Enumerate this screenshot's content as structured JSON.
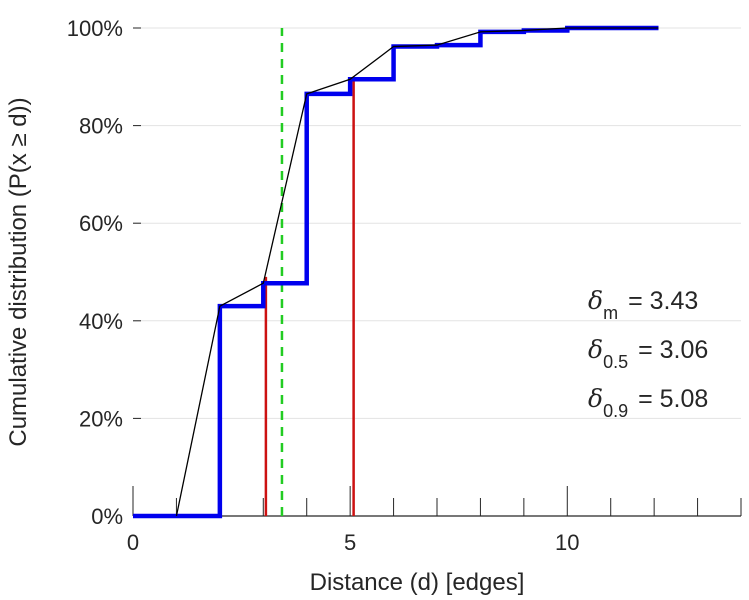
{
  "chart_data": {
    "type": "line",
    "xlabel": "Distance (d) [edges]",
    "ylabel": "Cumulative distribution (P(x ≥ d))",
    "xlim": [
      0,
      14
    ],
    "ylim": [
      0,
      1
    ],
    "x_ticks": [
      0,
      5,
      10
    ],
    "x_tick_labels": [
      "0",
      "5",
      "10"
    ],
    "x_minor_ticks": [
      1,
      2,
      3,
      4,
      6,
      7,
      8,
      9,
      11,
      12,
      13,
      14
    ],
    "y_ticks": [
      0,
      0.2,
      0.4,
      0.6,
      0.8,
      1.0
    ],
    "y_tick_labels": [
      "0%",
      "20%",
      "40%",
      "60%",
      "80%",
      "100%"
    ],
    "grid": "horizontal",
    "series": [
      {
        "kind": "step",
        "color": "#0000ee",
        "points": [
          [
            0,
            0
          ],
          [
            2,
            0
          ],
          [
            2,
            0.43
          ],
          [
            3,
            0.43
          ],
          [
            3,
            0.477
          ],
          [
            4,
            0.477
          ],
          [
            4,
            0.865
          ],
          [
            5,
            0.865
          ],
          [
            5,
            0.895
          ],
          [
            6,
            0.895
          ],
          [
            6,
            0.962
          ],
          [
            7,
            0.962
          ],
          [
            7,
            0.965
          ],
          [
            8,
            0.965
          ],
          [
            8,
            0.992
          ],
          [
            9,
            0.992
          ],
          [
            9,
            0.995
          ],
          [
            10,
            0.995
          ],
          [
            10,
            1.0
          ],
          [
            12.1,
            1.0
          ]
        ]
      },
      {
        "kind": "line",
        "color": "#000000",
        "points": [
          [
            1,
            0
          ],
          [
            2,
            0.43
          ],
          [
            3,
            0.477
          ],
          [
            4,
            0.865
          ],
          [
            5,
            0.895
          ],
          [
            6,
            0.962
          ],
          [
            7,
            0.965
          ],
          [
            8,
            0.992
          ],
          [
            9,
            0.995
          ],
          [
            10,
            1.0
          ],
          [
            12.1,
            1.0
          ]
        ]
      }
    ],
    "vlines": [
      {
        "x": 3.43,
        "color": "#22cc22",
        "style": "dashed"
      },
      {
        "x": 3.06,
        "color": "#cc1111",
        "style": "solid",
        "y_top": 0.49
      },
      {
        "x": 5.08,
        "color": "#cc1111",
        "style": "solid",
        "y_top": 0.9
      }
    ],
    "annotations": [
      {
        "symbol": "δ",
        "sub": "m",
        "text": "= 3.43"
      },
      {
        "symbol": "δ",
        "sub": "0.5",
        "text": "= 3.06"
      },
      {
        "symbol": "δ",
        "sub": "0.9",
        "text": "= 5.08"
      }
    ]
  }
}
